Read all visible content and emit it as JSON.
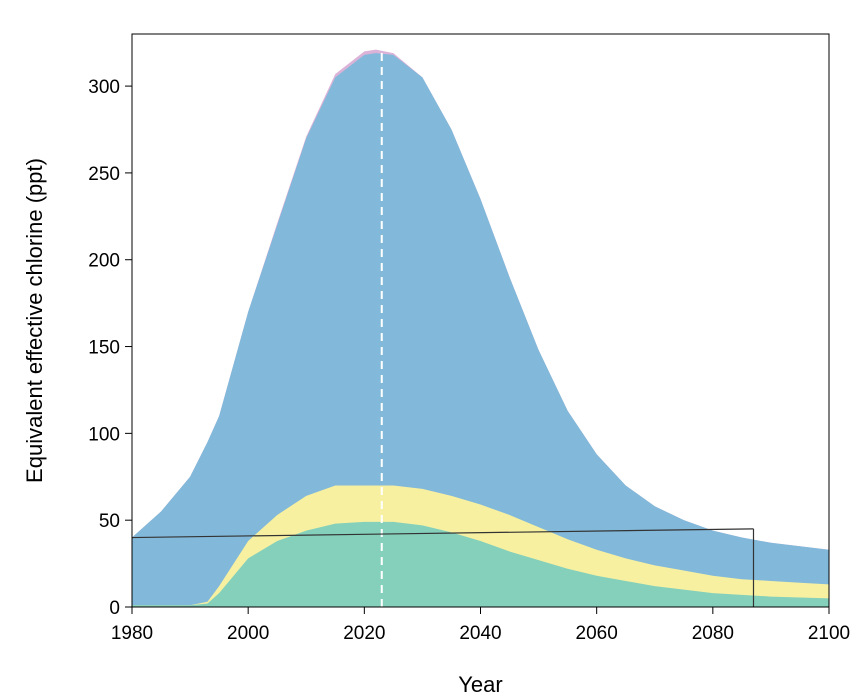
{
  "chart_data": {
    "type": "area",
    "title": "",
    "xlabel": "Year",
    "ylabel": "Equivalent effective chlorine (ppt)",
    "xlim": [
      1980,
      2100
    ],
    "ylim": [
      0,
      330
    ],
    "x_ticks": [
      1980,
      2000,
      2020,
      2040,
      2060,
      2080,
      2100
    ],
    "y_ticks": [
      0,
      50,
      100,
      150,
      200,
      250,
      300
    ],
    "grid": false,
    "legend": "none",
    "stacking": "cumulative",
    "x": [
      1980,
      1985,
      1990,
      1993,
      1995,
      2000,
      2005,
      2010,
      2015,
      2020,
      2022,
      2025,
      2030,
      2035,
      2040,
      2045,
      2050,
      2055,
      2060,
      2065,
      2070,
      2075,
      2080,
      2085,
      2090,
      2095,
      2100
    ],
    "series": [
      {
        "color": "#84d0bb",
        "cumulative_values": [
          1,
          1,
          1,
          2,
          8,
          28,
          38,
          44,
          48,
          49,
          49,
          49,
          47,
          43,
          38,
          32,
          27,
          22,
          18,
          15,
          12,
          10,
          8,
          7,
          6,
          5.5,
          5
        ]
      },
      {
        "color": "#f7f0a1",
        "cumulative_values": [
          1,
          1,
          1,
          3,
          12,
          38,
          53,
          64,
          70,
          70,
          70,
          70,
          68,
          64,
          59,
          53,
          46,
          39,
          33,
          28,
          24,
          21,
          18,
          16,
          15,
          14,
          13
        ]
      },
      {
        "color": "#82b8d9",
        "cumulative_values": [
          40,
          55,
          75,
          95,
          110,
          170,
          220,
          270,
          305,
          318,
          319,
          318,
          305,
          275,
          235,
          190,
          148,
          113,
          88,
          70,
          58,
          50,
          44,
          40,
          37,
          35,
          33
        ]
      },
      {
        "color": "#dcb3d8",
        "cumulative_values": [
          40,
          55,
          75,
          95,
          110,
          170,
          221,
          271,
          307,
          320,
          321,
          319,
          305,
          275,
          235,
          190,
          148,
          113,
          88,
          70,
          58,
          50,
          44,
          40,
          37,
          35,
          33
        ]
      }
    ],
    "annotations": {
      "dashed_vertical_line_year": 2023,
      "dashed_line_color": "#ffffff",
      "reference_line": {
        "x0": 1980,
        "y0": 40,
        "x1": 2087,
        "y1": 45,
        "drop_to_zero": true,
        "color": "#333333"
      }
    }
  }
}
